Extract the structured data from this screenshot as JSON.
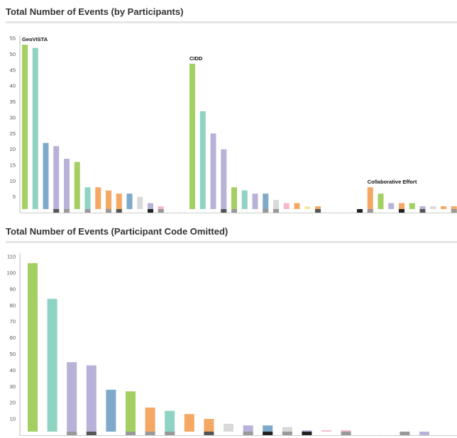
{
  "colors": {
    "green": "#a4cf63",
    "teal": "#8fd3c3",
    "blue": "#7ea9c9",
    "lavender": "#b8b2d9",
    "orange": "#f4a864",
    "lightgray": "#d9d9d9",
    "pink": "#f5b8c8",
    "yellow": "#f3e9a0",
    "darkgray": "#555555",
    "midgray": "#999999",
    "black": "#222222"
  },
  "chart_data": [
    {
      "type": "bar",
      "title": "Total Number of Events (by Participants)",
      "ylim": [
        0,
        56
      ],
      "yticks": [
        5,
        10,
        15,
        20,
        25,
        30,
        35,
        40,
        45,
        50,
        55
      ],
      "grid": false,
      "annotations": [
        {
          "text": "GeoVISTA",
          "bar": 0
        },
        {
          "text": "CIDD",
          "bar": 16
        },
        {
          "text": "Collaborative Effort",
          "bar": 33
        }
      ],
      "bars": [
        {
          "value": 53,
          "color": "green"
        },
        {
          "value": 52,
          "color": "teal"
        },
        {
          "value": 22,
          "color": "blue"
        },
        {
          "value": 21,
          "color": "lavender",
          "base": "darkgray"
        },
        {
          "value": 17,
          "color": "lavender",
          "base": "midgray"
        },
        {
          "value": 16,
          "color": "green"
        },
        {
          "value": 8,
          "color": "teal",
          "base": "midgray"
        },
        {
          "value": 8,
          "color": "orange"
        },
        {
          "value": 7,
          "color": "orange",
          "base": "midgray"
        },
        {
          "value": 6,
          "color": "orange",
          "base": "darkgray"
        },
        {
          "value": 6,
          "color": "blue"
        },
        {
          "value": 5,
          "color": "lightgray"
        },
        {
          "value": 3,
          "color": "lavender",
          "base": "black"
        },
        {
          "value": 2,
          "color": "pink",
          "base": "midgray"
        },
        {
          "value": 1,
          "color": "lightgray"
        },
        {
          "value": 1,
          "color": "blue"
        },
        {
          "value": 47,
          "color": "green"
        },
        {
          "value": 32,
          "color": "teal"
        },
        {
          "value": 25,
          "color": "lavender"
        },
        {
          "value": 20,
          "color": "lavender",
          "base": "darkgray"
        },
        {
          "value": 8,
          "color": "green",
          "base": "midgray"
        },
        {
          "value": 7,
          "color": "teal"
        },
        {
          "value": 6,
          "color": "lavender"
        },
        {
          "value": 6,
          "color": "blue",
          "base": "midgray"
        },
        {
          "value": 4,
          "color": "lightgray",
          "base": "midgray"
        },
        {
          "value": 3,
          "color": "pink"
        },
        {
          "value": 3,
          "color": "orange"
        },
        {
          "value": 2,
          "color": "yellow"
        },
        {
          "value": 2,
          "color": "orange",
          "base": "darkgray"
        },
        {
          "value": 1,
          "color": "orange"
        },
        {
          "value": 1,
          "color": "lightgray"
        },
        {
          "value": 1,
          "color": "lavender"
        },
        {
          "value": 1,
          "color": "orange",
          "base": "black"
        },
        {
          "value": 8,
          "color": "orange",
          "base": "midgray"
        },
        {
          "value": 6,
          "color": "green"
        },
        {
          "value": 3,
          "color": "lavender"
        },
        {
          "value": 3,
          "color": "orange",
          "base": "black"
        },
        {
          "value": 3,
          "color": "green"
        },
        {
          "value": 2,
          "color": "lavender",
          "base": "darkgray"
        },
        {
          "value": 2,
          "color": "lightgray"
        },
        {
          "value": 2,
          "color": "orange"
        },
        {
          "value": 2,
          "color": "orange",
          "base": "midgray"
        }
      ]
    },
    {
      "type": "bar",
      "title": "Total Number of Events (Participant Code Omitted)",
      "ylim": [
        0,
        112
      ],
      "yticks": [
        10,
        20,
        30,
        40,
        50,
        60,
        70,
        80,
        90,
        100,
        110
      ],
      "grid": false,
      "bars": [
        {
          "value": 106,
          "color": "green"
        },
        {
          "value": 84,
          "color": "teal"
        },
        {
          "value": 45,
          "color": "lavender",
          "base": "midgray"
        },
        {
          "value": 43,
          "color": "lavender",
          "base": "darkgray"
        },
        {
          "value": 28,
          "color": "blue"
        },
        {
          "value": 27,
          "color": "green",
          "base": "midgray"
        },
        {
          "value": 17,
          "color": "orange",
          "base": "midgray"
        },
        {
          "value": 15,
          "color": "teal",
          "base": "midgray"
        },
        {
          "value": 13,
          "color": "orange"
        },
        {
          "value": 10,
          "color": "orange",
          "base": "darkgray"
        },
        {
          "value": 7,
          "color": "lightgray"
        },
        {
          "value": 6,
          "color": "lavender",
          "base": "midgray"
        },
        {
          "value": 6,
          "color": "blue",
          "base": "black"
        },
        {
          "value": 5,
          "color": "lightgray",
          "base": "midgray"
        },
        {
          "value": 3,
          "color": "lavender",
          "base": "black"
        },
        {
          "value": 3,
          "color": "pink"
        },
        {
          "value": 3,
          "color": "pink",
          "base": "midgray"
        },
        {
          "value": 2,
          "color": "yellow"
        },
        {
          "value": 2,
          "color": "orange"
        },
        {
          "value": 2,
          "color": "yellow",
          "base": "midgray"
        },
        {
          "value": 2,
          "color": "yellow",
          "base": "lavender"
        },
        {
          "value": 2,
          "color": "blue"
        }
      ]
    }
  ]
}
